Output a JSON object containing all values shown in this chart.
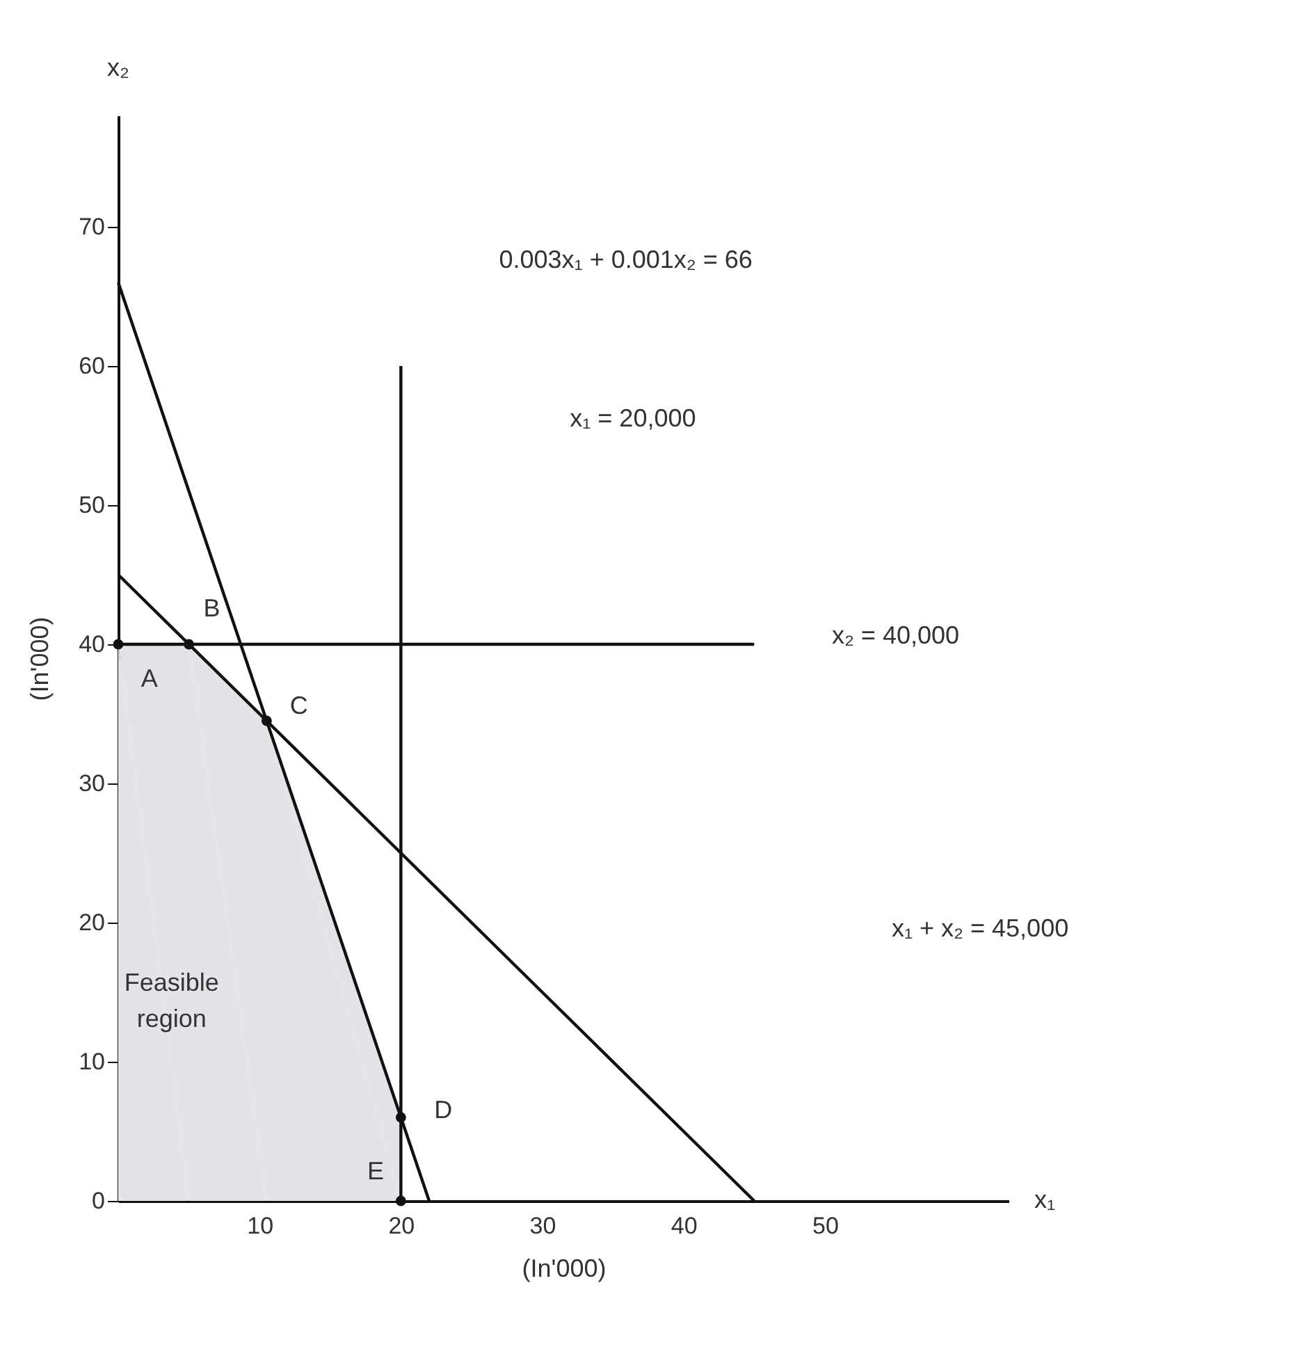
{
  "chart_data": {
    "type": "line",
    "xlabel": "(In'000)",
    "ylabel": "(In'000)",
    "xlim": [
      0,
      63
    ],
    "ylim": [
      0,
      78
    ],
    "xticks": [
      10,
      20,
      30,
      40,
      50
    ],
    "yticks": [
      0,
      10,
      20,
      30,
      40,
      50,
      60,
      70
    ],
    "grid": false,
    "series": [
      {
        "type": "area",
        "color": "#e4e4e8",
        "x": [
          0,
          5,
          10.5,
          20
        ],
        "values": [
          40,
          40,
          34.5,
          6
        ]
      },
      {
        "color": "#111111",
        "x": [
          0,
          22
        ],
        "values": [
          66,
          0
        ]
      },
      {
        "color": "#111111",
        "x": [
          20,
          20
        ],
        "values": [
          0,
          60
        ]
      },
      {
        "color": "#111111",
        "x": [
          0,
          45
        ],
        "values": [
          40,
          40
        ]
      },
      {
        "color": "#111111",
        "x": [
          0,
          45
        ],
        "values": [
          45,
          0
        ]
      },
      {
        "type": "scatter",
        "color": "#111111",
        "marker": "circle",
        "x": [
          0,
          5,
          10.5,
          20,
          20
        ],
        "values": [
          40,
          40,
          34.5,
          6,
          0
        ]
      }
    ],
    "annotations": [
      "x₂",
      "x₁",
      "0.003x₁ + 0.001x₂ = 66",
      "x₁ = 20,000",
      "x₂ = 40,000",
      "x₁ + x₂ = 45,000",
      "Feasible region",
      "A",
      "B",
      "C",
      "D",
      "E"
    ]
  }
}
